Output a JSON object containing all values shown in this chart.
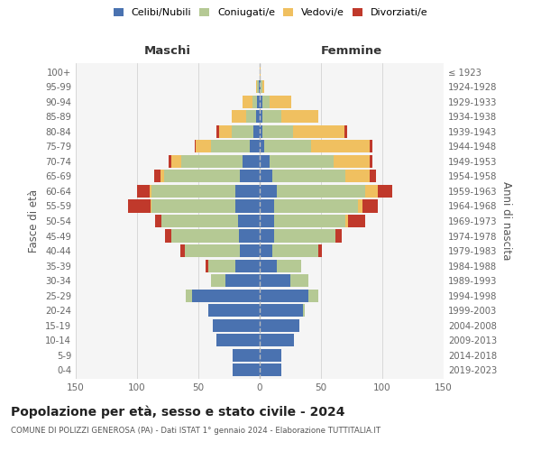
{
  "age_groups": [
    "0-4",
    "5-9",
    "10-14",
    "15-19",
    "20-24",
    "25-29",
    "30-34",
    "35-39",
    "40-44",
    "45-49",
    "50-54",
    "55-59",
    "60-64",
    "65-69",
    "70-74",
    "75-79",
    "80-84",
    "85-89",
    "90-94",
    "95-99",
    "100+"
  ],
  "birth_years": [
    "2019-2023",
    "2014-2018",
    "2009-2013",
    "2004-2008",
    "1999-2003",
    "1994-1998",
    "1989-1993",
    "1984-1988",
    "1979-1983",
    "1974-1978",
    "1969-1973",
    "1964-1968",
    "1959-1963",
    "1954-1958",
    "1949-1953",
    "1944-1948",
    "1939-1943",
    "1934-1938",
    "1929-1933",
    "1924-1928",
    "≤ 1923"
  ],
  "colors": {
    "celibe": "#4a72b0",
    "coniugato": "#b5c994",
    "vedovo": "#f0c060",
    "divorziato": "#c0392b"
  },
  "maschi": {
    "celibe": [
      22,
      22,
      35,
      38,
      42,
      55,
      28,
      20,
      16,
      17,
      18,
      20,
      20,
      16,
      14,
      8,
      5,
      3,
      2,
      1,
      0
    ],
    "coniugato": [
      0,
      0,
      0,
      0,
      0,
      5,
      12,
      22,
      45,
      55,
      62,
      68,
      68,
      62,
      50,
      32,
      18,
      8,
      4,
      1,
      0
    ],
    "vedovo": [
      0,
      0,
      0,
      0,
      0,
      0,
      0,
      0,
      0,
      0,
      0,
      1,
      2,
      3,
      8,
      12,
      10,
      12,
      8,
      1,
      0
    ],
    "divorziato": [
      0,
      0,
      0,
      0,
      0,
      0,
      0,
      2,
      4,
      5,
      5,
      18,
      10,
      5,
      2,
      1,
      2,
      0,
      0,
      0,
      0
    ]
  },
  "femmine": {
    "nubile": [
      18,
      18,
      28,
      32,
      35,
      40,
      25,
      14,
      10,
      12,
      12,
      12,
      14,
      10,
      8,
      4,
      2,
      2,
      2,
      1,
      0
    ],
    "coniugata": [
      0,
      0,
      0,
      0,
      2,
      8,
      15,
      20,
      38,
      50,
      58,
      68,
      72,
      60,
      52,
      38,
      25,
      16,
      6,
      1,
      0
    ],
    "vedova": [
      0,
      0,
      0,
      0,
      0,
      0,
      0,
      0,
      0,
      0,
      2,
      4,
      10,
      20,
      30,
      48,
      42,
      30,
      18,
      2,
      1
    ],
    "divorziata": [
      0,
      0,
      0,
      0,
      0,
      0,
      0,
      0,
      3,
      5,
      14,
      12,
      12,
      5,
      2,
      2,
      2,
      0,
      0,
      0,
      0
    ]
  },
  "xlim": 150,
  "title": "Popolazione per età, sesso e stato civile - 2024",
  "subtitle": "COMUNE DI POLIZZI GENEROSA (PA) - Dati ISTAT 1° gennaio 2024 - Elaborazione TUTTITALIA.IT",
  "xlabel_left": "Maschi",
  "xlabel_right": "Femmine",
  "ylabel_left": "Fasce di età",
  "ylabel_right": "Anni di nascita",
  "bg_color": "#f5f5f5"
}
